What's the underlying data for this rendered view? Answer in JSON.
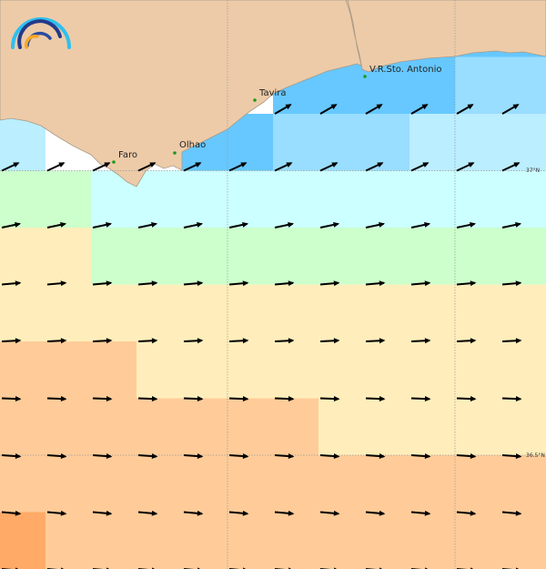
{
  "places": [
    {
      "name": "Faro",
      "lon_label_side": "right"
    },
    {
      "name": "Olhao"
    },
    {
      "name": "Tavira"
    },
    {
      "name": "V.R.Sto. Antonio"
    }
  ],
  "latitude_labels": [
    "37°N",
    "36.5°N"
  ],
  "colors": {
    "land": "#edcba8",
    "coast": "#a89a88",
    "town": "#1a9a1a",
    "arrow": "#000000"
  },
  "legend_palette": [
    "#66c8ff",
    "#99ddff",
    "#bbeeff",
    "#ccffff",
    "#ccffcc",
    "#ffeebb",
    "#ffcc99",
    "#ffaa66"
  ],
  "cell_grid": [
    [
      "#ffffff",
      "#ffffff",
      "#ffffff",
      "#ffffff",
      "#ffffff",
      "#ffffff",
      "#66c8ff",
      "#66c8ff",
      "#66c8ff",
      "#66c8ff",
      "#99ddff",
      "#99ddff"
    ],
    [
      "#bbeeff",
      "#ffffff",
      "#ffffff",
      "#ffffff",
      "#66c8ff",
      "#66c8ff",
      "#99ddff",
      "#99ddff",
      "#99ddff",
      "#bbeeff",
      "#bbeeff",
      "#bbeeff"
    ],
    [
      "#ccffcc",
      "#ccffcc",
      "#ccffff",
      "#ccffff",
      "#ccffff",
      "#ccffff",
      "#ccffff",
      "#ccffff",
      "#ccffff",
      "#ccffff",
      "#ccffff",
      "#ccffff"
    ],
    [
      "#ffeebb",
      "#ffeebb",
      "#ccffcc",
      "#ccffcc",
      "#ccffcc",
      "#ccffcc",
      "#ccffcc",
      "#ccffcc",
      "#ccffcc",
      "#ccffcc",
      "#ccffcc",
      "#ccffcc"
    ],
    [
      "#ffeebb",
      "#ffeebb",
      "#ffeebb",
      "#ffeebb",
      "#ffeebb",
      "#ffeebb",
      "#ffeebb",
      "#ffeebb",
      "#ffeebb",
      "#ffeebb",
      "#ffeebb",
      "#ffeebb"
    ],
    [
      "#ffcc99",
      "#ffcc99",
      "#ffcc99",
      "#ffeebb",
      "#ffeebb",
      "#ffeebb",
      "#ffeebb",
      "#ffeebb",
      "#ffeebb",
      "#ffeebb",
      "#ffeebb",
      "#ffeebb"
    ],
    [
      "#ffcc99",
      "#ffcc99",
      "#ffcc99",
      "#ffcc99",
      "#ffcc99",
      "#ffcc99",
      "#ffcc99",
      "#ffeebb",
      "#ffeebb",
      "#ffeebb",
      "#ffeebb",
      "#ffeebb"
    ],
    [
      "#ffcc99",
      "#ffcc99",
      "#ffcc99",
      "#ffcc99",
      "#ffcc99",
      "#ffcc99",
      "#ffcc99",
      "#ffcc99",
      "#ffcc99",
      "#ffcc99",
      "#ffcc99",
      "#ffcc99"
    ],
    [
      "#ffaa66",
      "#ffcc99",
      "#ffcc99",
      "#ffcc99",
      "#ffcc99",
      "#ffcc99",
      "#ffcc99",
      "#ffcc99",
      "#ffcc99",
      "#ffcc99",
      "#ffcc99",
      "#ffcc99"
    ]
  ]
}
